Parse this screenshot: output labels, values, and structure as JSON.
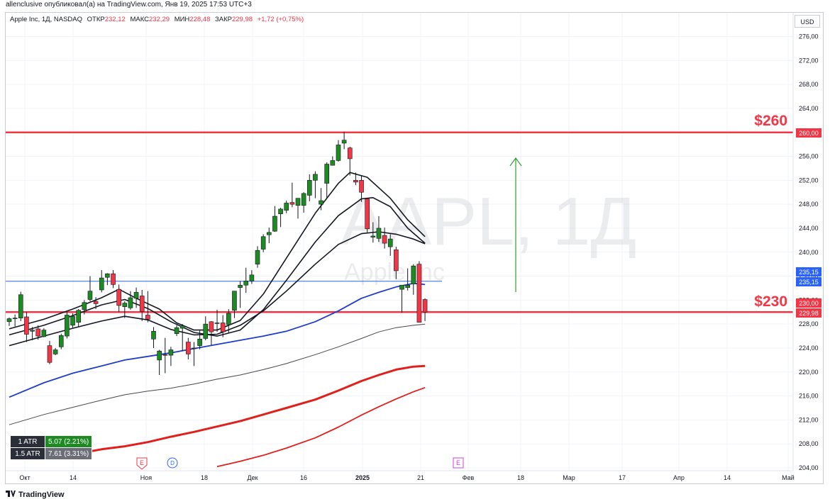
{
  "header": {
    "published": "allenclusive опубликовал(а) на TradingView.com, Янв 19, 2025 17:53 UTC+3"
  },
  "legend": {
    "symbol": "Apple Inc, 1Д, NASDAQ",
    "open_label": "ОТКР",
    "open": "232,12",
    "high_label": "МАКС",
    "high": "232,29",
    "low_label": "МИН",
    "low": "228,48",
    "close_label": "ЗАКР",
    "close": "229,98",
    "change": "+1,72 (+0,75%)"
  },
  "currency": "USD",
  "watermark": {
    "ticker": "AAPL, 1Д",
    "name": "Apple Inc"
  },
  "annotations": {
    "level_high": "$260",
    "level_low": "$230"
  },
  "price_labels": {
    "level_260": "260,00",
    "blue1": "235,15",
    "blue2": "235,15",
    "red1": "230,00",
    "red2": "229,98"
  },
  "atr": [
    {
      "name": "1 ATR",
      "value": "5.07 (2.21%)"
    },
    {
      "name": "1.5 ATR",
      "value": "7.61 (3.31%)"
    }
  ],
  "event_markers": [
    "E",
    "D",
    "E"
  ],
  "footer": {
    "brand": "TradingView"
  },
  "colors": {
    "up": "#089981",
    "down": "#f23645",
    "level": "#f23645",
    "ma_blue": "#1e3ec8",
    "ma_red": "#e0201b",
    "hline_blue": "#2962ff",
    "arrow": "#2e9e2e"
  },
  "chart_data": {
    "type": "candlestick",
    "ylim": [
      204,
      278
    ],
    "y_ticks": [
      "276,00",
      "272,00",
      "268,00",
      "264,00",
      "260,00",
      "256,00",
      "252,00",
      "248,00",
      "244,00",
      "240,00",
      "236,00",
      "232,00",
      "228,00",
      "224,00",
      "220,00",
      "216,00",
      "212,00",
      "208,00",
      "204,00"
    ],
    "x_ticks": [
      "Окт",
      "14",
      "Ноя",
      "18",
      "Дек",
      "16",
      "2025",
      "21",
      "Фев",
      "18",
      "Мар",
      "17",
      "Апр",
      "14",
      "Май"
    ],
    "hlines": [
      {
        "name": "level-260",
        "y": 260,
        "color": "#f23645"
      },
      {
        "name": "level-230",
        "y": 230,
        "color": "#f23645"
      },
      {
        "name": "level-blue",
        "y": 235.15,
        "color": "#2962ff"
      }
    ],
    "candles": [
      [
        228.4,
        229.1,
        227.7,
        228.9
      ],
      [
        228.9,
        229.6,
        227.6,
        229.0
      ],
      [
        229.0,
        233.4,
        228.5,
        232.9
      ],
      [
        229.2,
        230.0,
        225.0,
        226.3
      ],
      [
        226.8,
        227.5,
        225.3,
        227.0
      ],
      [
        227.2,
        227.8,
        225.4,
        226.0
      ],
      [
        225.9,
        227.3,
        225.8,
        227.0
      ],
      [
        224.4,
        225.2,
        221.3,
        221.6
      ],
      [
        223.0,
        224.0,
        222.8,
        223.7
      ],
      [
        224.2,
        226.4,
        223.8,
        226.1
      ],
      [
        226.0,
        230.0,
        225.6,
        229.5
      ],
      [
        227.8,
        229.8,
        227.4,
        229.3
      ],
      [
        228.3,
        230.5,
        227.5,
        230.3
      ],
      [
        230.4,
        232.0,
        229.6,
        231.6
      ],
      [
        232.1,
        236.0,
        231.8,
        233.5
      ],
      [
        231.8,
        232.5,
        230.5,
        231.4
      ],
      [
        233.7,
        237.0,
        233.3,
        235.7
      ],
      [
        235.8,
        236.5,
        234.5,
        236.4
      ],
      [
        236.4,
        237.0,
        234.0,
        234.6
      ],
      [
        233.8,
        234.6,
        230.0,
        231.1
      ],
      [
        230.9,
        231.8,
        229.0,
        231.5
      ],
      [
        230.7,
        233.5,
        230.4,
        232.4
      ],
      [
        232.3,
        234.1,
        230.7,
        233.3
      ],
      [
        232.7,
        233.7,
        228.5,
        230.1
      ],
      [
        229.5,
        233.5,
        228.3,
        228.8
      ],
      [
        225.5,
        227.5,
        224.0,
        226.8
      ],
      [
        222.0,
        223.7,
        219.5,
        223.5
      ],
      [
        222.9,
        225.7,
        219.8,
        222.8
      ],
      [
        222.8,
        224.2,
        221.0,
        223.7
      ],
      [
        226.4,
        227.8,
        226.0,
        227.4
      ],
      [
        227.3,
        228.0,
        223.5,
        227.7
      ],
      [
        225.0,
        225.7,
        222.1,
        223.0
      ],
      [
        223.9,
        225.0,
        221.0,
        224.0
      ],
      [
        224.4,
        226.9,
        223.8,
        225.5
      ],
      [
        225.6,
        229.3,
        225.3,
        228.0
      ],
      [
        228.4,
        228.5,
        224.5,
        226.7
      ],
      [
        228.2,
        230.4,
        226.7,
        228.2
      ],
      [
        228.2,
        229.5,
        225.8,
        226.7
      ],
      [
        227.9,
        230.5,
        226.5,
        229.8
      ],
      [
        230.3,
        233.4,
        229.0,
        233.5
      ],
      [
        234.1,
        235.2,
        230.7,
        234.5
      ],
      [
        234.5,
        237.4,
        233.2,
        235.2
      ],
      [
        235.2,
        237.0,
        234.7,
        236.2
      ],
      [
        238.0,
        241.0,
        237.4,
        240.3
      ],
      [
        240.5,
        243.0,
        240.0,
        242.6
      ],
      [
        242.9,
        244.1,
        241.5,
        243.3
      ],
      [
        243.5,
        247.7,
        243.4,
        246.0
      ],
      [
        246.4,
        247.4,
        244.2,
        247.2
      ],
      [
        247.0,
        248.6,
        246.5,
        248.2
      ],
      [
        248.3,
        251.6,
        247.5,
        248.0
      ],
      [
        247.8,
        248.9,
        245.6,
        249.0
      ],
      [
        247.8,
        250.0,
        246.6,
        249.8
      ],
      [
        249.5,
        253.0,
        248.5,
        252.0
      ],
      [
        252.0,
        253.5,
        249.0,
        253.0
      ],
      [
        248.0,
        250.7,
        247.0,
        248.6
      ],
      [
        251.5,
        255.0,
        249.0,
        254.7
      ],
      [
        254.5,
        256.0,
        254.5,
        255.3
      ],
      [
        255.3,
        258.7,
        255.1,
        257.9
      ],
      [
        258.2,
        260.1,
        257.2,
        258.7
      ],
      [
        257.4,
        257.6,
        252.8,
        255.6
      ],
      [
        252.0,
        253.3,
        251.2,
        251.7
      ],
      [
        252.0,
        252.7,
        248.4,
        250.0
      ],
      [
        248.9,
        249.0,
        243.3,
        243.9
      ],
      [
        242.5,
        245.0,
        241.6,
        242.7
      ],
      [
        242.3,
        246.0,
        241.7,
        244.0
      ],
      [
        242.8,
        244.1,
        240.6,
        241.5
      ],
      [
        240.9,
        243.0,
        239.4,
        242.2
      ],
      [
        240.4,
        240.9,
        235.5,
        236.9
      ],
      [
        233.8,
        234.3,
        229.9,
        234.5
      ],
      [
        234.1,
        237.3,
        233.6,
        234.5
      ],
      [
        234.7,
        238.0,
        232.9,
        237.7
      ],
      [
        238.0,
        238.5,
        229.0,
        228.3
      ],
      [
        232.1,
        232.3,
        228.5,
        230.0
      ]
    ],
    "series": [
      {
        "name": "",
        "color": "#131722",
        "values": [
          [
            0,
            227.2
          ],
          [
            6,
            228.8
          ],
          [
            11,
            230.5
          ],
          [
            16,
            232.4
          ],
          [
            19,
            233.8
          ],
          [
            22,
            232.3
          ],
          [
            26,
            230.5
          ],
          [
            29,
            228.2
          ],
          [
            32,
            227.0
          ],
          [
            36,
            227.0
          ],
          [
            40,
            228.6
          ],
          [
            44,
            233.0
          ],
          [
            48,
            239.0
          ],
          [
            53,
            246.5
          ],
          [
            57,
            251.5
          ],
          [
            59,
            253.3
          ],
          [
            62,
            252.5
          ],
          [
            66,
            249.0
          ],
          [
            69,
            245.4
          ],
          [
            72,
            242.6
          ]
        ]
      },
      {
        "name": "",
        "color": "#131722",
        "values": [
          [
            0,
            226.2
          ],
          [
            6,
            227.8
          ],
          [
            11,
            229.4
          ],
          [
            16,
            231.2
          ],
          [
            20,
            232.1
          ],
          [
            24,
            230.6
          ],
          [
            28,
            228.4
          ],
          [
            32,
            226.6
          ],
          [
            36,
            226.0
          ],
          [
            40,
            227.0
          ],
          [
            44,
            230.4
          ],
          [
            48,
            235.3
          ],
          [
            53,
            241.7
          ],
          [
            57,
            246.1
          ],
          [
            61,
            248.9
          ],
          [
            63,
            249.1
          ],
          [
            66,
            247.6
          ],
          [
            69,
            244.0
          ],
          [
            72,
            241.5
          ]
        ]
      },
      {
        "name": "",
        "color": "#131722",
        "values": [
          [
            0,
            224.4
          ],
          [
            6,
            226.0
          ],
          [
            11,
            227.3
          ],
          [
            16,
            228.5
          ],
          [
            20,
            229.3
          ],
          [
            24,
            228.7
          ],
          [
            28,
            227.1
          ],
          [
            32,
            226.2
          ],
          [
            36,
            226.3
          ],
          [
            40,
            227.8
          ],
          [
            44,
            230.2
          ],
          [
            48,
            233.5
          ],
          [
            53,
            238.0
          ],
          [
            57,
            241.3
          ],
          [
            61,
            243.1
          ],
          [
            64,
            243.4
          ],
          [
            67,
            243.0
          ],
          [
            70,
            242.2
          ],
          [
            72,
            241.4
          ]
        ]
      },
      {
        "name": "",
        "color": "#1e3ec8",
        "values": [
          [
            0,
            215.8
          ],
          [
            6,
            218.2
          ],
          [
            11,
            219.8
          ],
          [
            16,
            221.0
          ],
          [
            20,
            222.0
          ],
          [
            24,
            222.6
          ],
          [
            28,
            223.2
          ],
          [
            32,
            223.9
          ],
          [
            36,
            224.6
          ],
          [
            40,
            225.3
          ],
          [
            44,
            226.0
          ],
          [
            48,
            226.8
          ],
          [
            53,
            228.4
          ],
          [
            57,
            230.2
          ],
          [
            61,
            232.3
          ],
          [
            64,
            233.3
          ],
          [
            67,
            234.2
          ],
          [
            70,
            234.8
          ],
          [
            72,
            234.6
          ]
        ]
      },
      {
        "name": "",
        "color": "#474747",
        "values": [
          [
            0,
            211.2
          ],
          [
            6,
            212.9
          ],
          [
            11,
            214.1
          ],
          [
            16,
            215.3
          ],
          [
            20,
            216.2
          ],
          [
            24,
            216.8
          ],
          [
            28,
            217.3
          ],
          [
            32,
            218.0
          ],
          [
            36,
            218.8
          ],
          [
            40,
            219.5
          ],
          [
            44,
            220.4
          ],
          [
            48,
            221.4
          ],
          [
            53,
            222.9
          ],
          [
            57,
            224.2
          ],
          [
            61,
            225.6
          ],
          [
            64,
            226.7
          ],
          [
            67,
            227.4
          ],
          [
            70,
            227.8
          ],
          [
            72,
            228.0
          ]
        ]
      },
      {
        "name": "",
        "color": "#e0201b",
        "values": [
          [
            12,
            206.4
          ],
          [
            16,
            207.1
          ],
          [
            20,
            207.6
          ],
          [
            24,
            208.3
          ],
          [
            28,
            209.2
          ],
          [
            32,
            210.0
          ],
          [
            36,
            210.9
          ],
          [
            40,
            211.8
          ],
          [
            44,
            212.9
          ],
          [
            48,
            214.0
          ],
          [
            53,
            215.4
          ],
          [
            57,
            216.9
          ],
          [
            61,
            218.5
          ],
          [
            64,
            219.5
          ],
          [
            67,
            220.4
          ],
          [
            70,
            220.9
          ],
          [
            72,
            221.0
          ]
        ]
      },
      {
        "name": "",
        "color": "#e0201b",
        "values": [
          [
            36,
            204.2
          ],
          [
            40,
            205.1
          ],
          [
            44,
            206.1
          ],
          [
            48,
            207.3
          ],
          [
            53,
            209.0
          ],
          [
            57,
            210.8
          ],
          [
            61,
            212.8
          ],
          [
            64,
            214.2
          ],
          [
            67,
            215.5
          ],
          [
            70,
            216.7
          ],
          [
            72,
            217.4
          ]
        ]
      }
    ]
  }
}
